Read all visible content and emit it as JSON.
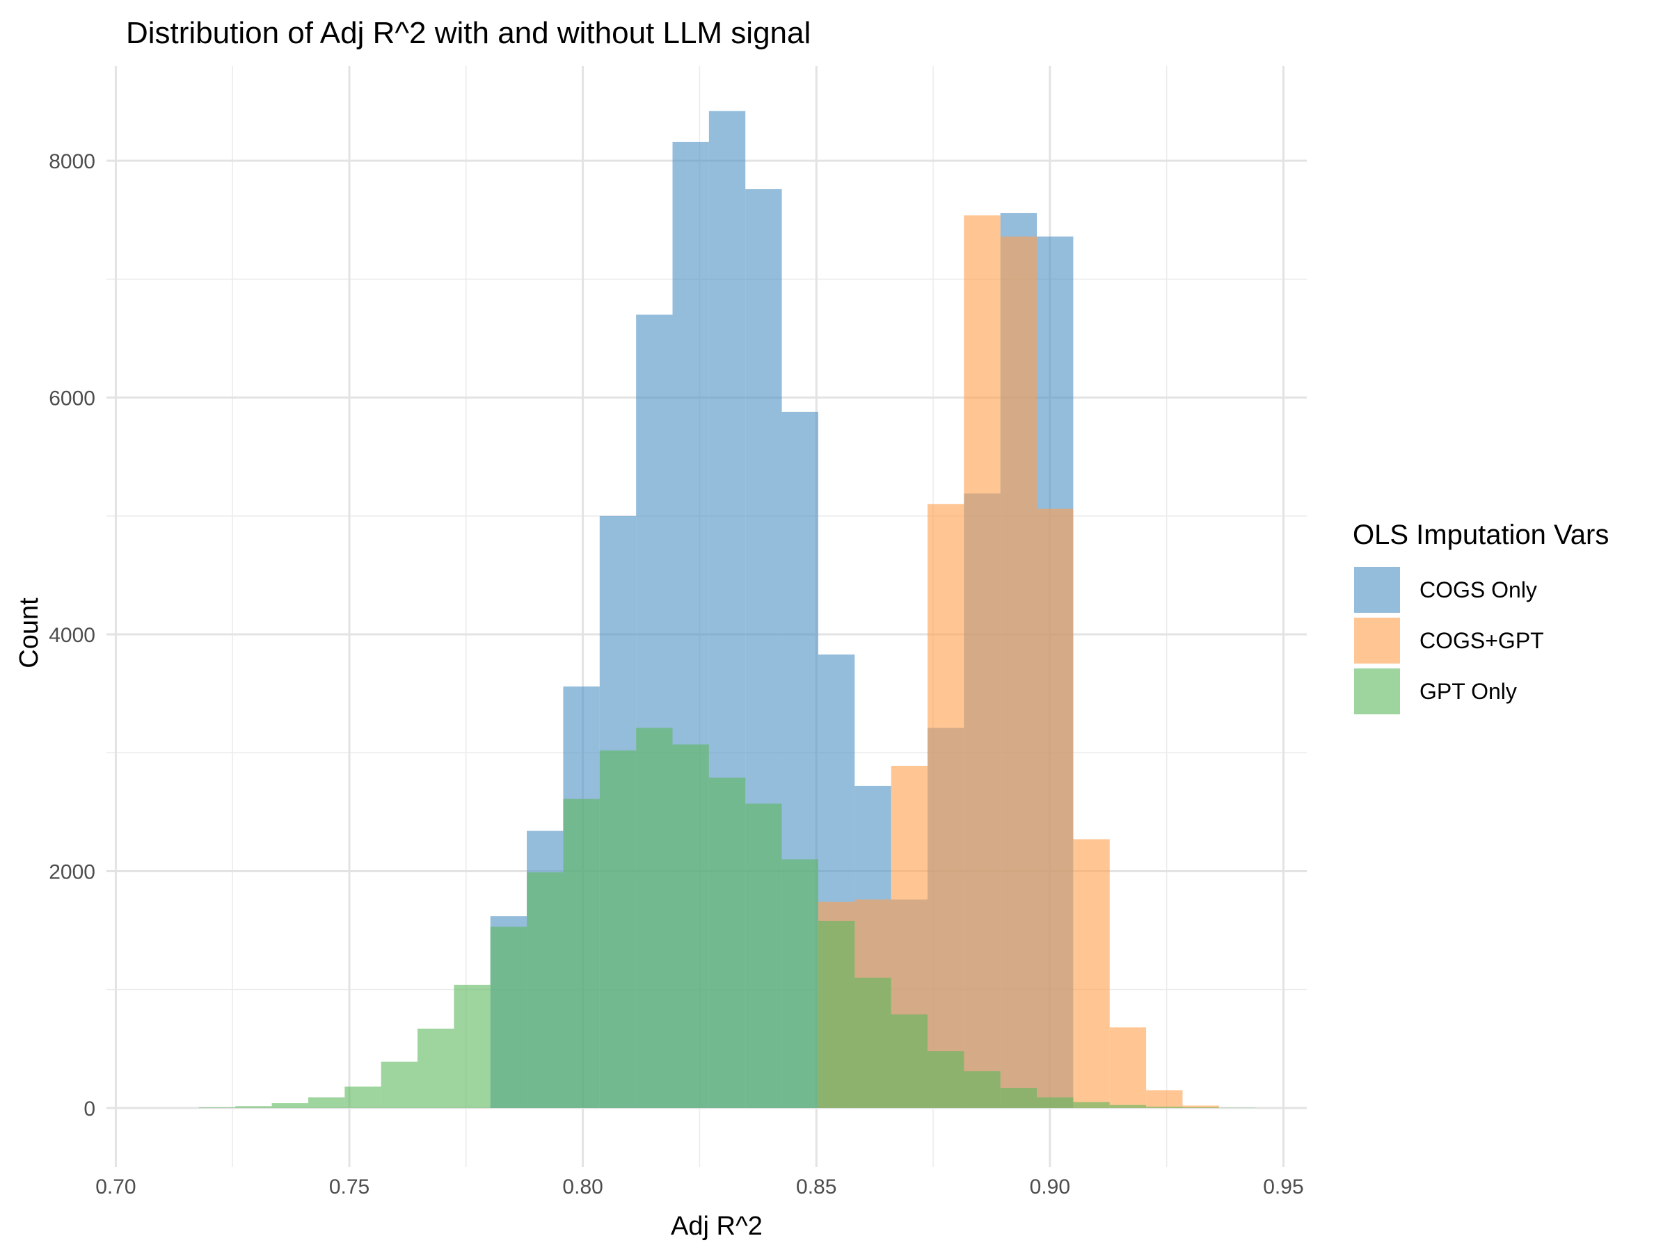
{
  "chart_data": {
    "type": "bar",
    "title": "Distribution of Adj R^2 with and without LLM signal",
    "xlabel": "Adj R^2",
    "ylabel": "Count",
    "xlim": [
      0.698,
      0.955
    ],
    "ylim": [
      -500,
      8800
    ],
    "x_ticks": [
      0.7,
      0.75,
      0.8,
      0.85,
      0.9,
      0.95
    ],
    "x_tick_labels": [
      "0.70",
      "0.75",
      "0.80",
      "0.85",
      "0.90",
      "0.95"
    ],
    "y_ticks": [
      0,
      2000,
      4000,
      6000,
      8000
    ],
    "y_tick_labels": [
      "0",
      "2000",
      "4000",
      "6000",
      "8000"
    ],
    "grid": true,
    "legend_position": "right",
    "legend_title": "OLS Imputation Vars",
    "series": [
      {
        "name": "COGS Only",
        "color": "#4D8FC3",
        "bins": [
          [
            0.7802,
            0.788,
            1620
          ],
          [
            0.788,
            0.7958,
            2340
          ],
          [
            0.7958,
            0.8036,
            3560
          ],
          [
            0.8036,
            0.8114,
            5000
          ],
          [
            0.8114,
            0.8192,
            6700
          ],
          [
            0.8192,
            0.827,
            8160
          ],
          [
            0.827,
            0.8348,
            8420
          ],
          [
            0.8348,
            0.8426,
            7760
          ],
          [
            0.8426,
            0.8504,
            5880
          ],
          [
            0.8504,
            0.8582,
            3830
          ],
          [
            0.8582,
            0.866,
            2720
          ],
          [
            0.866,
            0.8738,
            1760
          ],
          [
            0.8738,
            0.8816,
            3210
          ],
          [
            0.8816,
            0.8894,
            5190
          ],
          [
            0.8894,
            0.8972,
            7560
          ],
          [
            0.8972,
            0.905,
            7360
          ]
        ]
      },
      {
        "name": "COGS+GPT",
        "color": "#FFA04D",
        "bins": [
          [
            0.8504,
            0.8582,
            1740
          ],
          [
            0.8582,
            0.866,
            1760
          ],
          [
            0.866,
            0.8738,
            2890
          ],
          [
            0.8738,
            0.8816,
            5100
          ],
          [
            0.8816,
            0.8894,
            7540
          ],
          [
            0.8894,
            0.8972,
            7360
          ],
          [
            0.8972,
            0.905,
            5060
          ],
          [
            0.905,
            0.9128,
            2270
          ],
          [
            0.9128,
            0.9206,
            680
          ],
          [
            0.9206,
            0.9284,
            150
          ],
          [
            0.9284,
            0.9362,
            20
          ]
        ]
      },
      {
        "name": "GPT Only",
        "color": "#5EB85E",
        "bins": [
          [
            0.7178,
            0.7256,
            5
          ],
          [
            0.7256,
            0.7334,
            15
          ],
          [
            0.7334,
            0.7412,
            40
          ],
          [
            0.7412,
            0.749,
            90
          ],
          [
            0.749,
            0.7568,
            180
          ],
          [
            0.7568,
            0.7646,
            390
          ],
          [
            0.7646,
            0.7724,
            670
          ],
          [
            0.7724,
            0.7802,
            1040
          ],
          [
            0.7802,
            0.788,
            1530
          ],
          [
            0.788,
            0.7958,
            1990
          ],
          [
            0.7958,
            0.8036,
            2610
          ],
          [
            0.8036,
            0.8114,
            3020
          ],
          [
            0.8114,
            0.8192,
            3210
          ],
          [
            0.8192,
            0.827,
            3070
          ],
          [
            0.827,
            0.8348,
            2790
          ],
          [
            0.8348,
            0.8426,
            2570
          ],
          [
            0.8426,
            0.8504,
            2100
          ],
          [
            0.8504,
            0.8582,
            1580
          ],
          [
            0.8582,
            0.866,
            1100
          ],
          [
            0.866,
            0.8738,
            790
          ],
          [
            0.8738,
            0.8816,
            480
          ],
          [
            0.8816,
            0.8894,
            310
          ],
          [
            0.8894,
            0.8972,
            170
          ],
          [
            0.8972,
            0.905,
            90
          ],
          [
            0.905,
            0.9128,
            50
          ],
          [
            0.9128,
            0.9206,
            25
          ],
          [
            0.9206,
            0.9284,
            10
          ],
          [
            0.9284,
            0.9362,
            5
          ],
          [
            0.9362,
            0.944,
            2
          ]
        ]
      }
    ]
  }
}
